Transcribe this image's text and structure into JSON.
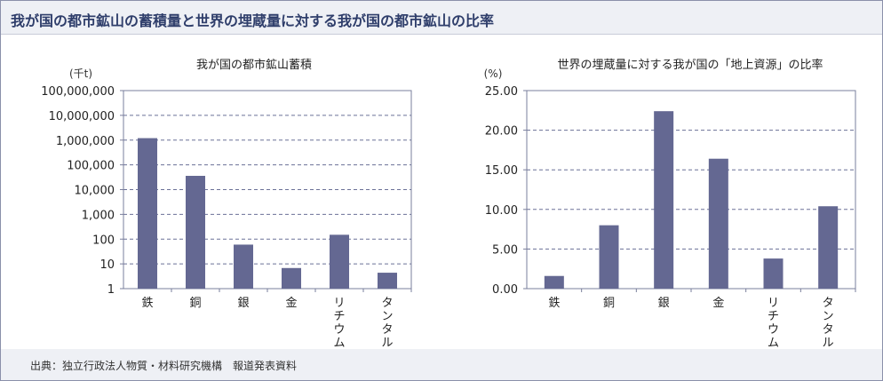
{
  "title": "我が国の都市鉱山の蓄積量と世界の埋蔵量に対する我が国の都市鉱山の比率",
  "source": "出典：独立行政法人物質・材料研究機構　報道発表資料",
  "colors": {
    "bar": "#646892",
    "axis": "#7a7f9c",
    "grid": "#6b7197",
    "title_text": "#2f3e6b",
    "header_bg": "#eef0f5"
  },
  "chart_data": [
    {
      "type": "bar",
      "title": "我が国の都市鉱山蓄積",
      "ylabel": "(千t)",
      "xlabel": "",
      "scale": "log",
      "categories": [
        "鉄",
        "銅",
        "銀",
        "金",
        "リチウム",
        "タンタル"
      ],
      "values": [
        1200000,
        36000,
        60,
        6.8,
        150,
        4.4
      ],
      "ylim": [
        1,
        100000000
      ],
      "yticks": [
        1,
        10,
        100,
        1000,
        10000,
        100000,
        1000000,
        10000000,
        100000000
      ],
      "ytick_labels": [
        "1",
        "10",
        "100",
        "1,000",
        "10,000",
        "100,000",
        "1,000,000",
        "10,000,000",
        "100,000,000"
      ],
      "grid": true
    },
    {
      "type": "bar",
      "title": "世界の埋蔵量に対する我が国の「地上資源」の比率",
      "ylabel": "(%)",
      "xlabel": "",
      "scale": "linear",
      "categories": [
        "鉄",
        "銅",
        "銀",
        "金",
        "リチウム",
        "タンタル"
      ],
      "values": [
        1.6,
        8.0,
        22.4,
        16.4,
        3.8,
        10.4
      ],
      "ylim": [
        0,
        25
      ],
      "yticks": [
        0,
        5,
        10,
        15,
        20,
        25
      ],
      "ytick_labels": [
        "0.00",
        "5.00",
        "10.00",
        "15.00",
        "20.00",
        "25.00"
      ],
      "grid": true
    }
  ]
}
